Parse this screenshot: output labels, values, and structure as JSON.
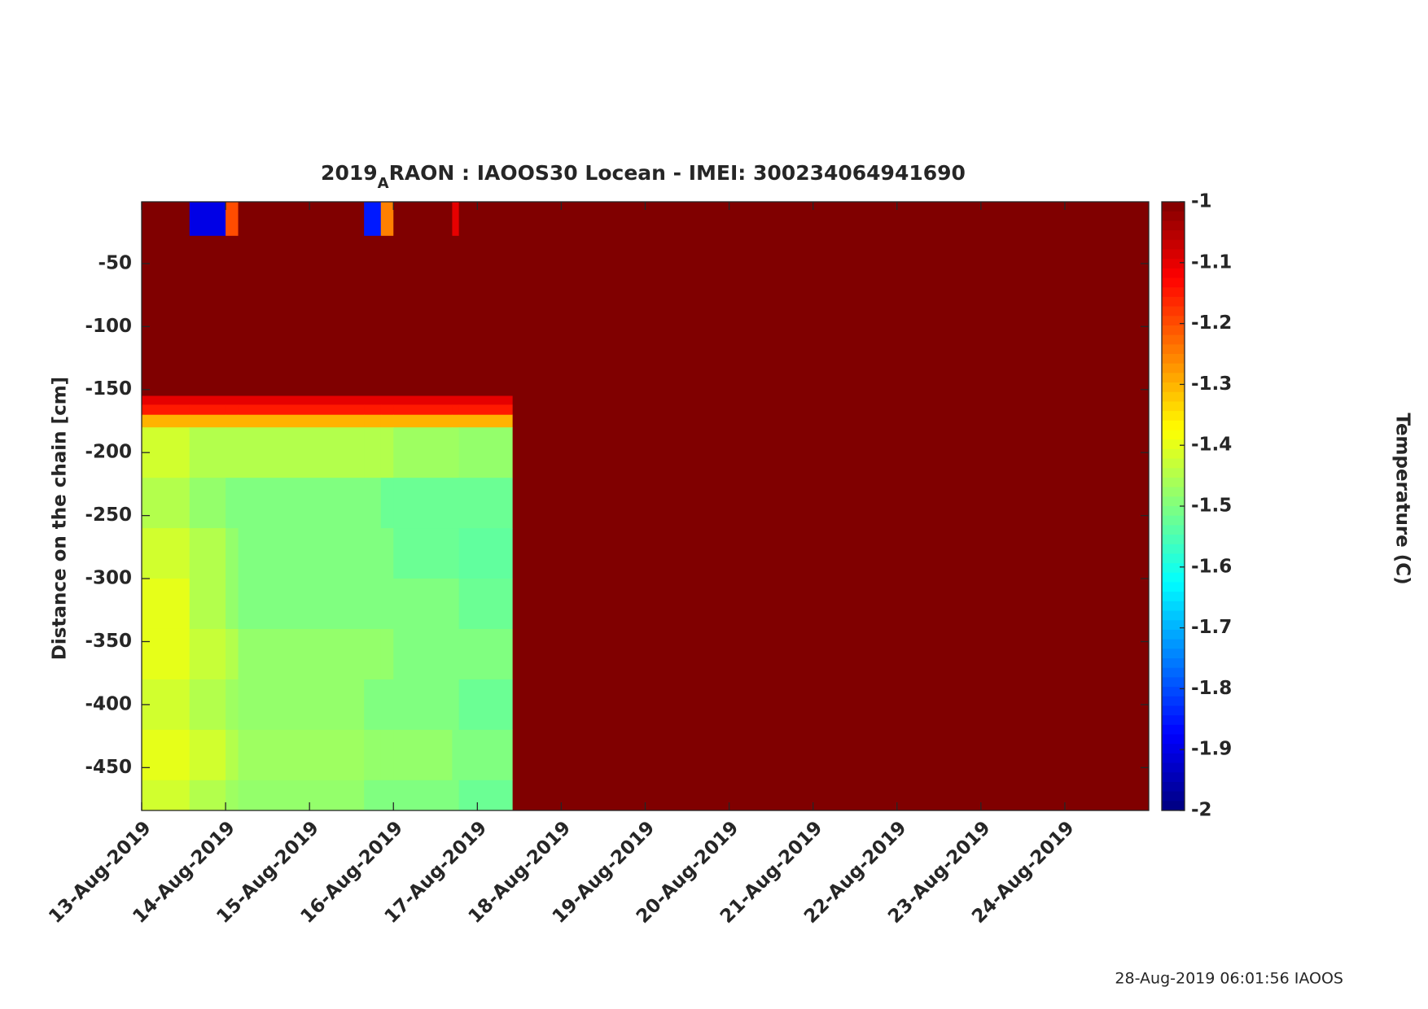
{
  "chart_data": {
    "type": "heatmap",
    "title": "2019",
    "title_subscript": "A",
    "title_rest": "RAON : IAOOS30  Locean - IMEI: 300234064941690",
    "y_label": "Distance on the chain [cm]",
    "colorbar_label": "Temperature (C)",
    "footer": "28-Aug-2019 06:01:56 IAOOS",
    "colormap": "jet",
    "xlim": [
      0,
      12
    ],
    "xticks": [
      {
        "value": 0,
        "label": "13-Aug-2019"
      },
      {
        "value": 1,
        "label": "14-Aug-2019"
      },
      {
        "value": 2,
        "label": "15-Aug-2019"
      },
      {
        "value": 3,
        "label": "16-Aug-2019"
      },
      {
        "value": 4,
        "label": "17-Aug-2019"
      },
      {
        "value": 5,
        "label": "18-Aug-2019"
      },
      {
        "value": 6,
        "label": "19-Aug-2019"
      },
      {
        "value": 7,
        "label": "20-Aug-2019"
      },
      {
        "value": 8,
        "label": "21-Aug-2019"
      },
      {
        "value": 9,
        "label": "22-Aug-2019"
      },
      {
        "value": 10,
        "label": "23-Aug-2019"
      },
      {
        "value": 11,
        "label": "24-Aug-2019"
      }
    ],
    "ylim": [
      -484,
      -1
    ],
    "yticks": [
      -50,
      -100,
      -150,
      -200,
      -250,
      -300,
      -350,
      -400,
      -450
    ],
    "clim": [
      -2,
      -1
    ],
    "cticks": [
      -1,
      -1.1,
      -1.2,
      -1.3,
      -1.4,
      -1.5,
      -1.6,
      -1.7,
      -1.8,
      -1.9,
      -2
    ],
    "x_edges": [
      0,
      0.57,
      1.0,
      1.15,
      2.65,
      2.85,
      3.0,
      3.7,
      3.78,
      4.42,
      12
    ],
    "y_edges": [
      -1,
      -28,
      -155,
      -162,
      -170,
      -180,
      -220,
      -260,
      -300,
      -340,
      -380,
      -420,
      -460,
      -484
    ],
    "z": [
      [
        -1,
        -1.9,
        -1.2,
        -1,
        -1.85,
        -1.25,
        -1,
        -1.1,
        -1,
        -1
      ],
      [
        -1,
        -1,
        -1,
        -1,
        -1,
        -1,
        -1,
        -1,
        -1,
        -1
      ],
      [
        -1.1,
        -1.1,
        -1.1,
        -1.1,
        -1.1,
        -1.1,
        -1.1,
        -1.1,
        -1.1,
        -1
      ],
      [
        -1.15,
        -1.15,
        -1.15,
        -1.15,
        -1.15,
        -1.15,
        -1.15,
        -1.15,
        -1.15,
        -1
      ],
      [
        -1.3,
        -1.3,
        -1.3,
        -1.3,
        -1.3,
        -1.3,
        -1.3,
        -1.3,
        -1.3,
        -1
      ],
      [
        -1.42,
        -1.45,
        -1.45,
        -1.45,
        -1.45,
        -1.45,
        -1.47,
        -1.47,
        -1.48,
        -1
      ],
      [
        -1.45,
        -1.48,
        -1.5,
        -1.5,
        -1.5,
        -1.52,
        -1.52,
        -1.52,
        -1.52,
        -1
      ],
      [
        -1.42,
        -1.45,
        -1.48,
        -1.5,
        -1.5,
        -1.5,
        -1.52,
        -1.52,
        -1.53,
        -1
      ],
      [
        -1.4,
        -1.45,
        -1.48,
        -1.5,
        -1.5,
        -1.5,
        -1.5,
        -1.5,
        -1.52,
        -1
      ],
      [
        -1.4,
        -1.43,
        -1.45,
        -1.48,
        -1.48,
        -1.48,
        -1.5,
        -1.5,
        -1.5,
        -1
      ],
      [
        -1.42,
        -1.45,
        -1.47,
        -1.48,
        -1.5,
        -1.5,
        -1.5,
        -1.5,
        -1.52,
        -1
      ],
      [
        -1.4,
        -1.42,
        -1.45,
        -1.47,
        -1.48,
        -1.48,
        -1.48,
        -1.5,
        -1.5,
        -1
      ],
      [
        -1.42,
        -1.45,
        -1.47,
        -1.48,
        -1.5,
        -1.5,
        -1.5,
        -1.5,
        -1.52,
        -1
      ]
    ]
  }
}
